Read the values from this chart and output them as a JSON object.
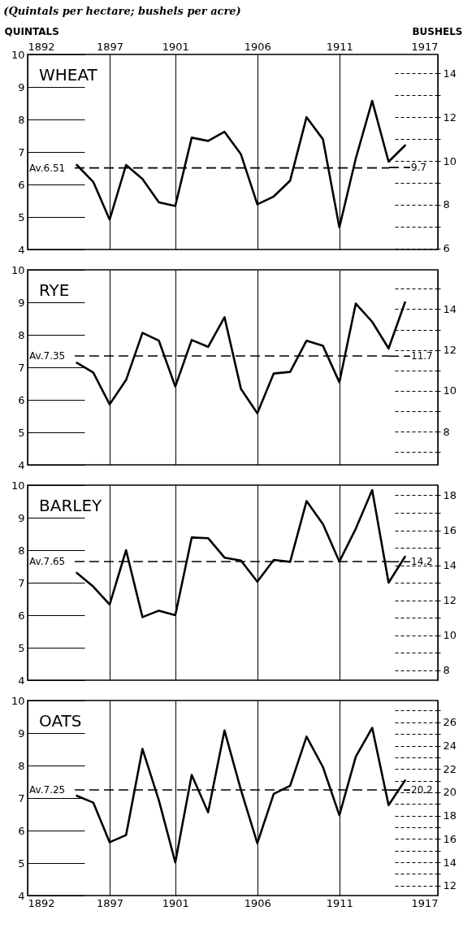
{
  "chart_data": [
    {
      "type": "line",
      "title": "WHEAT",
      "subtitle": "(Quintals per hectare; bushels per acre)",
      "ylabel": "QUINTALS",
      "y2label": "BUSHELS",
      "x": [
        1895,
        1896,
        1897,
        1898,
        1899,
        1900,
        1901,
        1902,
        1903,
        1904,
        1905,
        1906,
        1907,
        1908,
        1909,
        1910,
        1911,
        1912,
        1913,
        1914,
        1915
      ],
      "series": [
        {
          "color": "#000000",
          "values": [
            6.6,
            6.08,
            4.92,
            6.6,
            6.17,
            5.45,
            5.34,
            7.44,
            7.34,
            7.62,
            6.93,
            5.39,
            5.63,
            6.12,
            8.07,
            7.39,
            4.68,
            6.8,
            8.57,
            6.7,
            7.2
          ]
        }
      ],
      "x2lim": [
        1892,
        1917
      ],
      "x2ticks": [
        1892,
        1897,
        1901,
        1906,
        1911,
        1917
      ],
      "ylim": [
        4,
        10
      ],
      "yticks": [
        4,
        5,
        6,
        7,
        8,
        9,
        10
      ],
      "y2lim": [
        5.95,
        14.87
      ],
      "y2ticks": [
        6,
        {
          "value": 7,
          "label": null
        },
        8,
        {
          "value": 9,
          "label": null
        },
        10,
        {
          "value": 11,
          "label": null
        },
        12,
        {
          "value": 13,
          "label": null
        },
        14
      ],
      "ref_lines": [
        {
          "axis": "y",
          "value": 6.51,
          "label": "Av.6.51",
          "line_style": "dashed"
        },
        {
          "axis": "y2",
          "value": 9.7,
          "label": "9.7",
          "line_style": "dashed"
        }
      ],
      "grid": true,
      "line_style": "solid",
      "tick_labels": "y"
    },
    {
      "type": "line",
      "title": "RYE",
      "x": [
        1895,
        1896,
        1897,
        1898,
        1899,
        1900,
        1901,
        1902,
        1903,
        1904,
        1905,
        1906,
        1907,
        1908,
        1909,
        1910,
        1911,
        1912,
        1913,
        1914,
        1915
      ],
      "series": [
        {
          "color": "#000000",
          "values": [
            7.14,
            6.84,
            5.86,
            6.61,
            8.06,
            7.82,
            6.41,
            7.84,
            7.63,
            8.54,
            6.34,
            5.59,
            6.81,
            6.86,
            7.82,
            7.66,
            6.54,
            8.96,
            8.4,
            7.58,
            9.0
          ]
        }
      ],
      "xlim": [
        1892,
        1917
      ],
      "xticks": [
        1892,
        1897,
        1901,
        1906,
        1911,
        1917
      ],
      "ylim": [
        4,
        10
      ],
      "yticks": [
        4,
        5,
        6,
        7,
        8,
        9,
        10
      ],
      "y2lim": [
        6.37,
        15.93
      ],
      "y2ticks": [
        {
          "value": 7,
          "label": null
        },
        8,
        {
          "value": 9,
          "label": null
        },
        10,
        {
          "value": 11,
          "label": null
        },
        12,
        {
          "value": 13,
          "label": null
        },
        14,
        {
          "value": 15,
          "label": null
        }
      ],
      "ref_lines": [
        {
          "axis": "y",
          "value": 7.35,
          "label": "Av.7.35",
          "line_style": "dashed"
        },
        {
          "axis": "y2",
          "value": 11.7,
          "label": "11.7",
          "line_style": "dashed"
        }
      ],
      "grid": true,
      "line_style": "solid",
      "tick_labels": "y"
    },
    {
      "type": "line",
      "title": "BARLEY",
      "x": [
        1895,
        1896,
        1897,
        1898,
        1899,
        1900,
        1901,
        1902,
        1903,
        1904,
        1905,
        1906,
        1907,
        1908,
        1909,
        1910,
        1911,
        1912,
        1913,
        1914,
        1915
      ],
      "series": [
        {
          "color": "#000000",
          "values": [
            7.3,
            6.88,
            6.33,
            8.0,
            5.94,
            6.14,
            6.0,
            8.39,
            8.37,
            7.77,
            7.68,
            7.03,
            7.7,
            7.64,
            9.51,
            8.8,
            7.65,
            8.66,
            9.85,
            7.0,
            7.8
          ]
        }
      ],
      "xlim": [
        1892,
        1917
      ],
      "xticks": [
        1892,
        1897,
        1901,
        1906,
        1911,
        1917
      ],
      "ylim": [
        4,
        10
      ],
      "yticks": [
        4,
        5,
        6,
        7,
        8,
        9,
        10
      ],
      "y2lim": [
        7.43,
        18.58
      ],
      "y2ticks": [
        8,
        {
          "value": 9,
          "label": null
        },
        10,
        {
          "value": 11,
          "label": null
        },
        12,
        {
          "value": 13,
          "label": null
        },
        14,
        {
          "value": 15,
          "label": null
        },
        16,
        {
          "value": 17,
          "label": null
        },
        18
      ],
      "ref_lines": [
        {
          "axis": "y",
          "value": 7.65,
          "label": "Av.7.65",
          "line_style": "dashed"
        },
        {
          "axis": "y2",
          "value": 14.2,
          "label": "14.2",
          "line_style": "dashed"
        }
      ],
      "grid": true,
      "line_style": "solid",
      "tick_labels": "y"
    },
    {
      "type": "line",
      "title": "OATS",
      "x": [
        1895,
        1896,
        1897,
        1898,
        1899,
        1900,
        1901,
        1902,
        1903,
        1904,
        1905,
        1906,
        1907,
        1908,
        1909,
        1910,
        1911,
        1912,
        1913,
        1914,
        1915
      ],
      "series": [
        {
          "color": "#000000",
          "values": [
            7.07,
            6.86,
            5.64,
            5.86,
            8.51,
            6.93,
            5.02,
            7.71,
            6.56,
            9.08,
            7.25,
            5.61,
            7.13,
            7.38,
            8.89,
            7.95,
            6.47,
            8.27,
            9.16,
            6.78,
            7.54
          ]
        }
      ],
      "xlim": [
        1892,
        1917
      ],
      "xticks": [
        1892,
        1897,
        1901,
        1906,
        1911,
        1917
      ],
      "ylim": [
        4,
        10
      ],
      "yticks": [
        4,
        5,
        6,
        7,
        8,
        9,
        10
      ],
      "y2lim": [
        11.15,
        27.87
      ],
      "y2ticks": [
        12,
        {
          "value": 13,
          "label": null
        },
        14,
        {
          "value": 15,
          "label": null
        },
        16,
        {
          "value": 17,
          "label": null
        },
        18,
        {
          "value": 19,
          "label": null
        },
        20,
        {
          "value": 21,
          "label": null
        },
        22,
        {
          "value": 23,
          "label": null
        },
        24,
        {
          "value": 25,
          "label": null
        },
        26,
        {
          "value": 27,
          "label": null
        }
      ],
      "ref_lines": [
        {
          "axis": "y",
          "value": 7.25,
          "label": "Av.7.25",
          "line_style": "dashed"
        },
        {
          "axis": "y2",
          "value": 20.2,
          "label": "20.2",
          "line_style": "dashed"
        }
      ],
      "grid": true,
      "line_style": "solid"
    }
  ]
}
